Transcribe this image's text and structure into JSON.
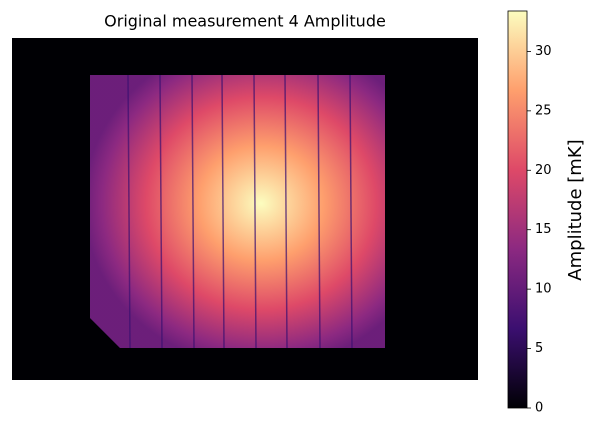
{
  "chart_data": {
    "type": "heatmap",
    "title": "Original measurement 4 Amplitude",
    "colorbar_label": "Amplitude [mK]",
    "clim": [
      0,
      33.4
    ],
    "colorbar_ticks": [
      0,
      5,
      10,
      15,
      20,
      25,
      30
    ],
    "colormap": [
      "#000004",
      "#3b0f70",
      "#8c2981",
      "#de4968",
      "#fe9f6d",
      "#fcfdbf"
    ]
  }
}
